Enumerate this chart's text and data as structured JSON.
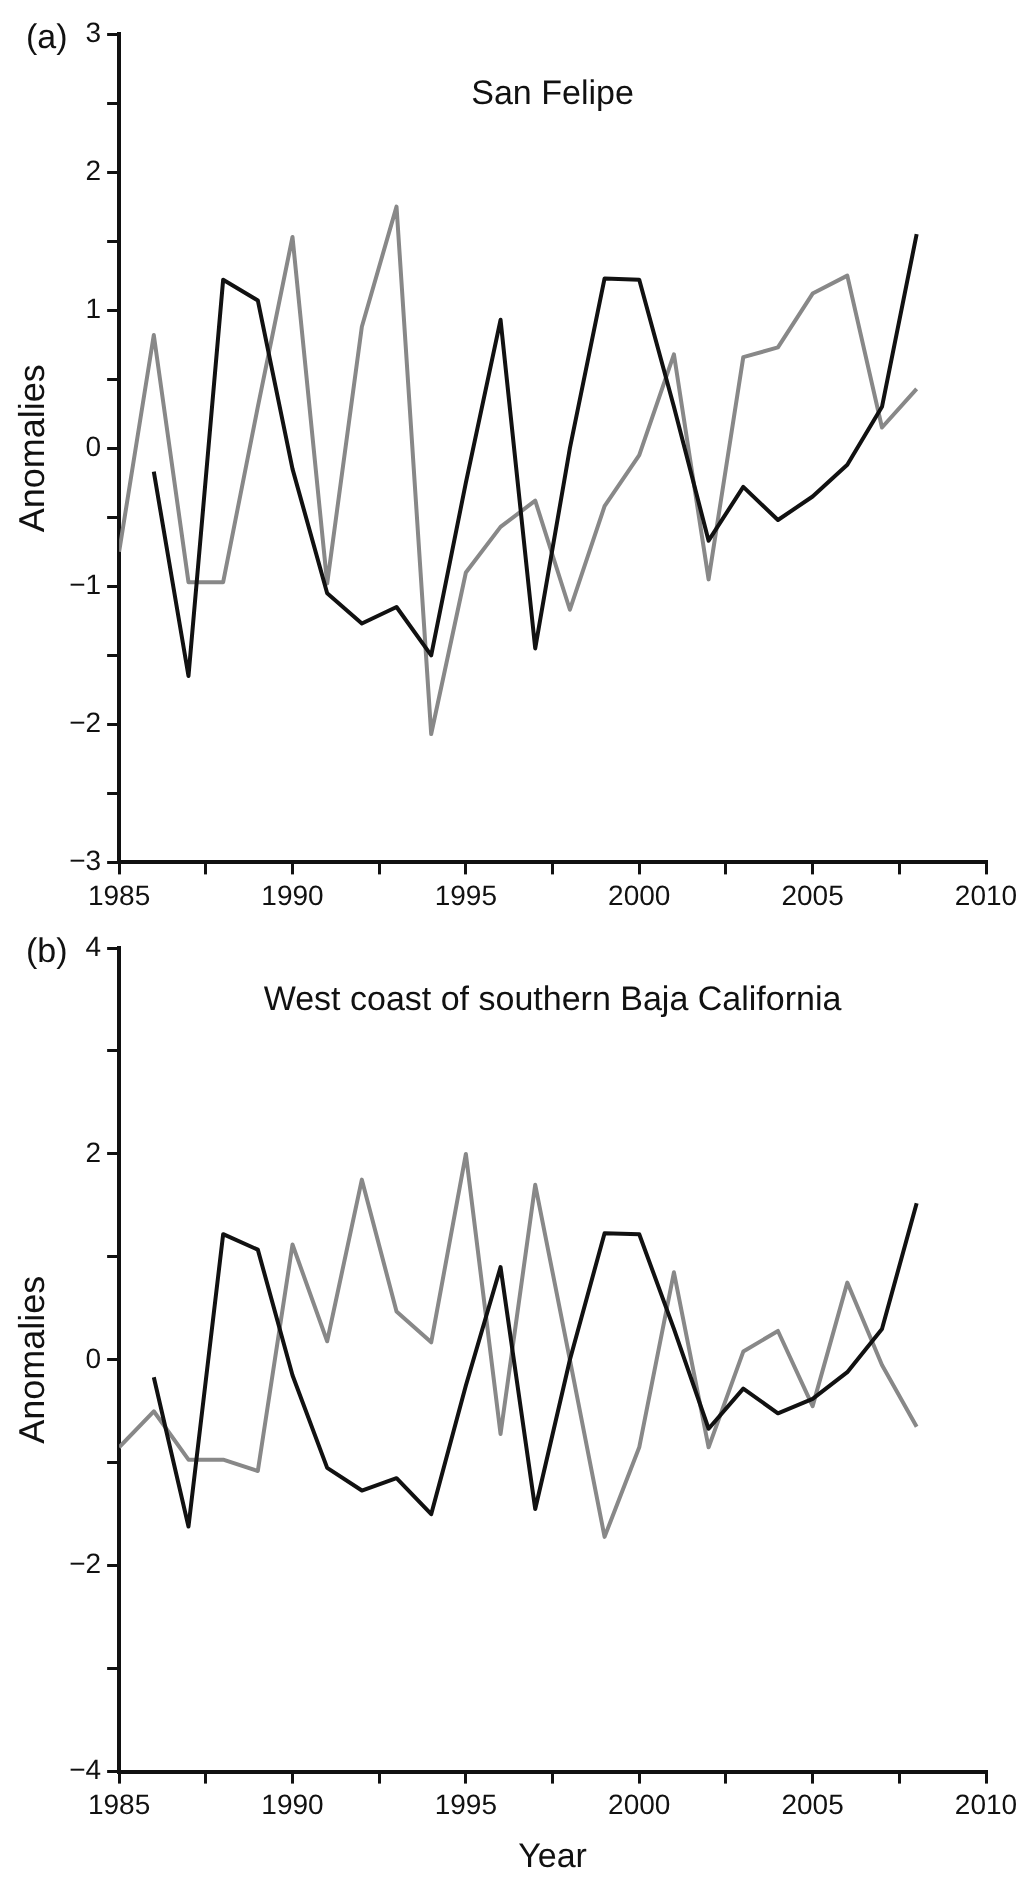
{
  "chart_data": [
    {
      "type": "line",
      "title": "San Felipe",
      "ylabel": "Anomalies",
      "annotations": [
        "(a)"
      ],
      "marker": "none",
      "x": [
        1985,
        1986,
        1987,
        1988,
        1989,
        1990,
        1991,
        1992,
        1993,
        1994,
        1995,
        1996,
        1997,
        1998,
        1999,
        2000,
        2001,
        2002,
        2003,
        2004,
        2005,
        2006,
        2007,
        2008
      ],
      "series": [
        {
          "color": "#111111",
          "values": [
            null,
            -0.17,
            -1.65,
            1.22,
            1.07,
            -0.15,
            -1.05,
            -1.27,
            -1.15,
            -1.5,
            -0.25,
            0.93,
            -1.45,
            0.0,
            1.23,
            1.22,
            0.3,
            -0.67,
            -0.28,
            -0.52,
            -0.35,
            -0.12,
            0.3,
            1.55
          ]
        },
        {
          "color": "#888888",
          "values": [
            -0.75,
            0.82,
            -0.97,
            -0.97,
            0.3,
            1.53,
            -0.98,
            0.88,
            1.75,
            -2.07,
            -0.9,
            -0.57,
            -0.38,
            -1.17,
            -0.42,
            -0.05,
            0.68,
            -0.95,
            0.66,
            0.73,
            1.12,
            1.25,
            0.15,
            0.43
          ]
        }
      ],
      "xlim": [
        1985,
        2010
      ],
      "xticks": [
        1985,
        {
          "value": 1987.5,
          "label": null
        },
        1990,
        {
          "value": 1992.5,
          "label": null
        },
        1995,
        {
          "value": 1997.5,
          "label": null
        },
        2000,
        {
          "value": 2002.5,
          "label": null
        },
        2005,
        {
          "value": 2007.5,
          "label": null
        },
        2010
      ],
      "ylim": [
        -3,
        3
      ],
      "yticks": [
        -3,
        {
          "value": -2.5,
          "label": null
        },
        -2,
        {
          "value": -1.5,
          "label": null
        },
        -1,
        {
          "value": -0.5,
          "label": null
        },
        0,
        {
          "value": 0.5,
          "label": null
        },
        1,
        {
          "value": 1.5,
          "label": null
        },
        2,
        {
          "value": 2.5,
          "label": null
        },
        3
      ]
    },
    {
      "type": "line",
      "title": "West coast of southern Baja California",
      "xlabel": "Year",
      "ylabel": "Anomalies",
      "annotations": [
        "(b)"
      ],
      "marker": "none",
      "x": [
        1985,
        1986,
        1987,
        1988,
        1989,
        1990,
        1991,
        1992,
        1993,
        1994,
        1995,
        1996,
        1997,
        1998,
        1999,
        2000,
        2001,
        2002,
        2003,
        2004,
        2005,
        2006,
        2007,
        2008
      ],
      "series": [
        {
          "color": "#111111",
          "values": [
            null,
            -0.17,
            -1.62,
            1.22,
            1.07,
            -0.15,
            -1.05,
            -1.27,
            -1.15,
            -1.5,
            -0.25,
            0.9,
            -1.45,
            0.0,
            1.23,
            1.22,
            0.3,
            -0.67,
            -0.28,
            -0.52,
            -0.38,
            -0.12,
            0.3,
            1.52
          ]
        },
        {
          "color": "#888888",
          "values": [
            -0.85,
            -0.5,
            -0.97,
            -0.97,
            -1.08,
            1.12,
            0.18,
            1.75,
            0.47,
            0.17,
            2.0,
            -0.72,
            1.7,
            0.0,
            -1.72,
            -0.85,
            0.85,
            -0.85,
            0.08,
            0.28,
            -0.45,
            0.75,
            -0.05,
            -0.65
          ]
        }
      ],
      "xlim": [
        1985,
        2010
      ],
      "xticks": [
        1985,
        {
          "value": 1987.5,
          "label": null
        },
        1990,
        {
          "value": 1992.5,
          "label": null
        },
        1995,
        {
          "value": 1997.5,
          "label": null
        },
        2000,
        {
          "value": 2002.5,
          "label": null
        },
        2005,
        {
          "value": 2007.5,
          "label": null
        },
        2010
      ],
      "ylim": [
        -4,
        4
      ],
      "yticks": [
        -4,
        {
          "value": -3,
          "label": null
        },
        -2,
        {
          "value": -1,
          "label": null
        },
        0,
        {
          "value": 1,
          "label": null
        },
        2,
        {
          "value": 3,
          "label": null
        },
        4
      ]
    }
  ]
}
